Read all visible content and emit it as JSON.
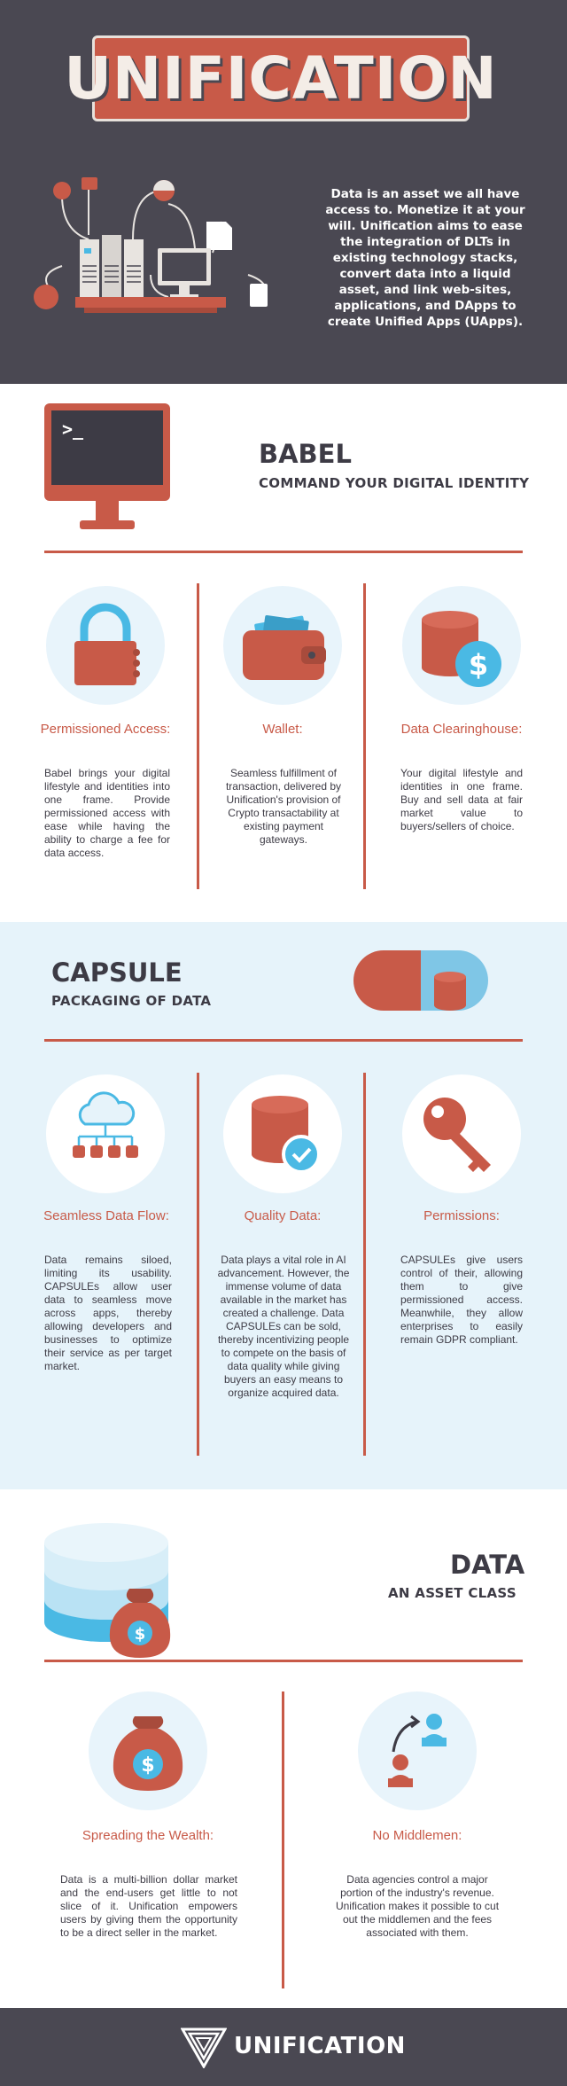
{
  "hero": {
    "title": "UNIFICATION",
    "description": "Data is an asset we all have access to. Monetize it at your will. Unification aims to ease the integration of DLTs in existing technology stacks, convert data into a liquid asset, and link web-sites, applications, and DApps to create Unified Apps (UApps)."
  },
  "babel": {
    "title": "BABEL",
    "subtitle": "COMMAND YOUR DIGITAL IDENTITY",
    "terminal_prompt": ">_",
    "columns": [
      {
        "icon": "padlock-icon",
        "title": "Permissioned Access:",
        "text": "Babel brings your digital lifestyle and identities into one frame. Provide permissioned access with ease while having the ability to charge a fee for data access."
      },
      {
        "icon": "wallet-icon",
        "title": "Wallet:",
        "text": "Seamless fulfillment of transaction, delivered by Unification's provision of Crypto transactability at existing payment gateways."
      },
      {
        "icon": "database-dollar-icon",
        "title": "Data Clearinghouse:",
        "text": "Your digital lifestyle and identities in one frame. Buy and sell data at fair market value to buyers/sellers of choice."
      }
    ]
  },
  "capsule": {
    "title": "CAPSULE",
    "subtitle": "PACKAGING OF DATA",
    "columns": [
      {
        "icon": "cloud-network-icon",
        "title": "Seamless Data Flow:",
        "text": "Data remains siloed, limiting its usability. CAPSULEs allow user data to seamless move across apps, thereby allowing developers and businesses to optimize their service as per target market."
      },
      {
        "icon": "database-check-icon",
        "title": "Quality Data:",
        "text": "Data plays a vital role in AI advancement. However, the immense volume of data available in the market has created a challenge. Data CAPSULEs can be sold, thereby incentivizing people to compete on the basis of data quality while giving buyers an easy means to organize acquired data."
      },
      {
        "icon": "key-icon",
        "title": "Permissions:",
        "text": "CAPSULEs give users control of their, allowing them to give permissioned access. Meanwhile, they allow enterprises to easily remain GDPR compliant."
      }
    ]
  },
  "data": {
    "title": "DATA",
    "subtitle": "AN ASSET CLASS",
    "columns": [
      {
        "icon": "money-bag-icon",
        "title": "Spreading the Wealth:",
        "text": "Data is a multi-billion dollar market and the end-users get little to not slice of it. Unification empowers users by giving them the opportunity to be a direct seller in the market."
      },
      {
        "icon": "people-transfer-icon",
        "title": "No Middlemen:",
        "text": "Data agencies control a major portion of the industry's revenue. Unification makes it possible to cut out the middlemen and the fees associated with them."
      }
    ]
  },
  "footer": {
    "brand": "UNIFICATION"
  },
  "colors": {
    "accent": "#c85a48",
    "dark": "#4a4852",
    "light_blue": "#e6f3fa",
    "sky": "#4ab9e4"
  }
}
